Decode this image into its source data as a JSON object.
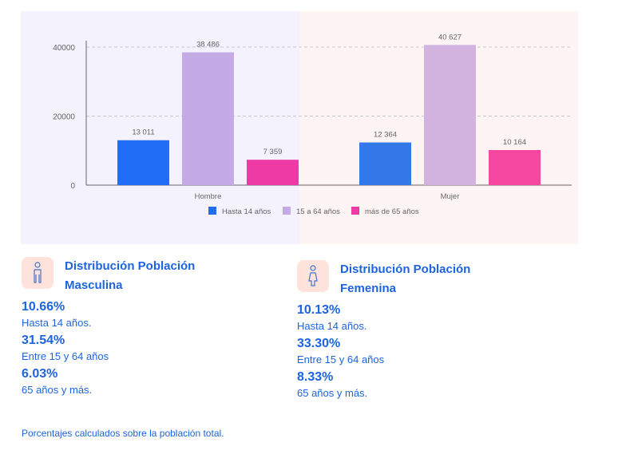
{
  "chart_data": {
    "type": "bar",
    "categories": [
      "Hombre",
      "Mujer"
    ],
    "series": [
      {
        "name": "Hasta 14 años",
        "values": [
          13011,
          12364
        ],
        "labels": [
          "13 011",
          "12 364"
        ],
        "colors": [
          "#1f6ef5",
          "#3378e8"
        ]
      },
      {
        "name": "15 a 64 años",
        "values": [
          38486,
          40627
        ],
        "labels": [
          "38 486",
          "40 627"
        ],
        "colors": [
          "#c5abe6",
          "#d2b3e0"
        ]
      },
      {
        "name": "más de 65 años",
        "values": [
          7359,
          10164
        ],
        "labels": [
          "7 359",
          "10 164"
        ],
        "colors": [
          "#ee3aa4",
          "#f546a0"
        ]
      }
    ],
    "legend_colors": [
      "#1f6ef5",
      "#c5abe6",
      "#ee3aa4"
    ],
    "yticks": [
      0,
      20000,
      40000
    ],
    "ylim": [
      0,
      40000
    ],
    "grid": true,
    "legend": "bottom",
    "background_colors": [
      "#f4f2fc",
      "#fdf4f3"
    ]
  },
  "male": {
    "title_line1": "Distribución Población",
    "title_line2": "Masculina",
    "icon": "male-person-icon",
    "stats": [
      {
        "pct": "10.66%",
        "label": "Hasta 14 años."
      },
      {
        "pct": "31.54%",
        "label": "Entre 15 y 64 años"
      },
      {
        "pct": "6.03%",
        "label": "65 años y más."
      }
    ]
  },
  "female": {
    "title_line1": "Distribución Población",
    "title_line2": "Femenina",
    "icon": "female-person-icon",
    "stats": [
      {
        "pct": "10.13%",
        "label": "Hasta 14 años."
      },
      {
        "pct": "33.30%",
        "label": "Entre 15 y 64 años"
      },
      {
        "pct": "8.33%",
        "label": "65 años y más."
      }
    ]
  },
  "note": "Porcentajes calculados sobre la población total."
}
